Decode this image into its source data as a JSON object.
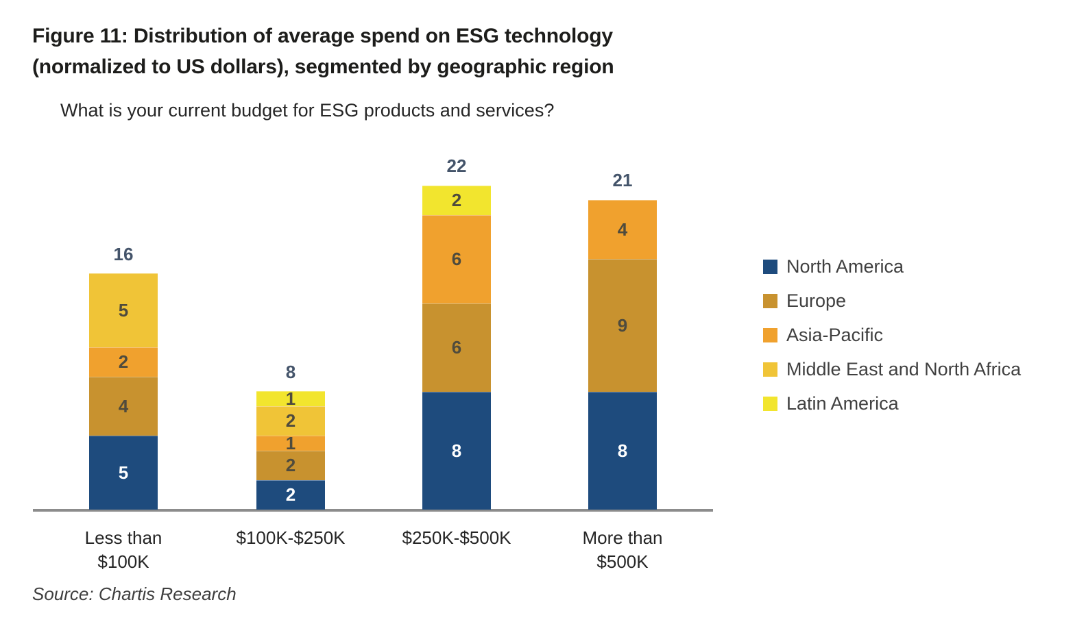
{
  "figure": {
    "title_line1": "Figure 11: Distribution of average spend on ESG technology",
    "title_line2": "(normalized to US dollars), segmented by geographic region",
    "subtitle": "What is your current budget for ESG products and services?",
    "source": "Source: Chartis Research"
  },
  "chart_data": {
    "type": "bar",
    "stacked": true,
    "title": "Figure 11: Distribution of average spend on ESG technology (normalized to US dollars), segmented by geographic region",
    "subtitle": "What is your current budget for ESG products and services?",
    "xlabel": "",
    "ylabel": "",
    "ylim": [
      0,
      24
    ],
    "grid": false,
    "legend_position": "right",
    "categories": [
      "Less than\n$100K",
      "$100K-$250K",
      "$250K-$500K",
      "More than\n$500K"
    ],
    "totals": [
      16,
      8,
      22,
      21
    ],
    "series": [
      {
        "name": "North America",
        "color": "#1e4b7d",
        "label_color": "#ffffff",
        "values": [
          5,
          2,
          8,
          8
        ]
      },
      {
        "name": "Europe",
        "color": "#c8922f",
        "label_color": "#4f4b3d",
        "values": [
          4,
          2,
          6,
          9
        ]
      },
      {
        "name": "Asia-Pacific",
        "color": "#f0a12e",
        "label_color": "#4f4b3d",
        "values": [
          2,
          1,
          6,
          4
        ]
      },
      {
        "name": "Middle East and North Africa",
        "color": "#f0c437",
        "label_color": "#4f4b3d",
        "values": [
          5,
          2,
          0,
          0
        ]
      },
      {
        "name": "Latin America",
        "color": "#f2e52e",
        "label_color": "#4f4b3d",
        "values": [
          0,
          1,
          2,
          0
        ]
      }
    ],
    "source": "Source: Chartis Research"
  }
}
